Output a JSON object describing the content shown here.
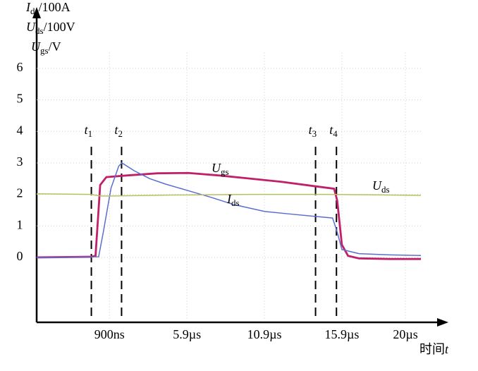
{
  "chart_data": {
    "type": "line",
    "y_label": [
      [
        "I",
        "ds",
        "/100A"
      ],
      [
        "U",
        "ds",
        "/100V"
      ],
      [
        "U",
        "gs",
        "/V"
      ]
    ],
    "x_label": [
      "时间",
      "t"
    ],
    "xlim": [
      -3.8,
      21
    ],
    "ylim": [
      -2,
      6.5
    ],
    "yticks": [
      0,
      1,
      2,
      3,
      4,
      5,
      6
    ],
    "xticks": [
      {
        "value": 0.9,
        "label": "900ns"
      },
      {
        "value": 5.9,
        "label": "5.9µs"
      },
      {
        "value": 10.9,
        "label": "10.9µs"
      },
      {
        "value": 15.9,
        "label": "15.9µs"
      },
      {
        "value": 20,
        "label": "20µs"
      }
    ],
    "grid": true,
    "markers": [
      {
        "label": [
          "t",
          "1"
        ],
        "x": -0.27
      },
      {
        "label": [
          "t",
          "2"
        ],
        "x": 1.68
      },
      {
        "label": [
          "t",
          "3"
        ],
        "x": 14.2
      },
      {
        "label": [
          "t",
          "4"
        ],
        "x": 15.55
      }
    ],
    "series": [
      {
        "name": [
          "U",
          "gs"
        ],
        "color": "#c0206a",
        "x": [
          -3.8,
          -0.3,
          0,
          0.3,
          0.7,
          2,
          4,
          6,
          8,
          10,
          12,
          14,
          15.4,
          15.6,
          15.9,
          16.3,
          17,
          19,
          21
        ],
        "values": [
          0,
          0.02,
          0.05,
          2.3,
          2.55,
          2.6,
          2.67,
          2.68,
          2.6,
          2.5,
          2.4,
          2.27,
          2.18,
          1.8,
          0.4,
          0.05,
          -0.03,
          -0.05,
          -0.05
        ]
      },
      {
        "name": [
          "I",
          "ds"
        ],
        "color": "#5a6ed0",
        "x": [
          -3.8,
          0.2,
          0.5,
          1,
          1.5,
          1.7,
          2.5,
          3.5,
          4.5,
          5.9,
          7.5,
          8.9,
          10.9,
          12.5,
          14.2,
          15.3,
          15.6,
          15.9,
          17,
          19,
          21
        ],
        "values": [
          0,
          0.02,
          0.8,
          2.2,
          2.9,
          3.0,
          2.75,
          2.5,
          2.33,
          2.13,
          1.9,
          1.68,
          1.46,
          1.38,
          1.3,
          1.25,
          0.8,
          0.25,
          0.12,
          0.08,
          0.06
        ]
      },
      {
        "name": [
          "U",
          "ds"
        ],
        "color": "#b8c060",
        "x": [
          -3.8,
          -0.3,
          0.3,
          1,
          5,
          10,
          15,
          21
        ],
        "values": [
          2.02,
          2.0,
          1.95,
          1.95,
          1.98,
          2.0,
          2.0,
          1.97
        ]
      }
    ]
  }
}
